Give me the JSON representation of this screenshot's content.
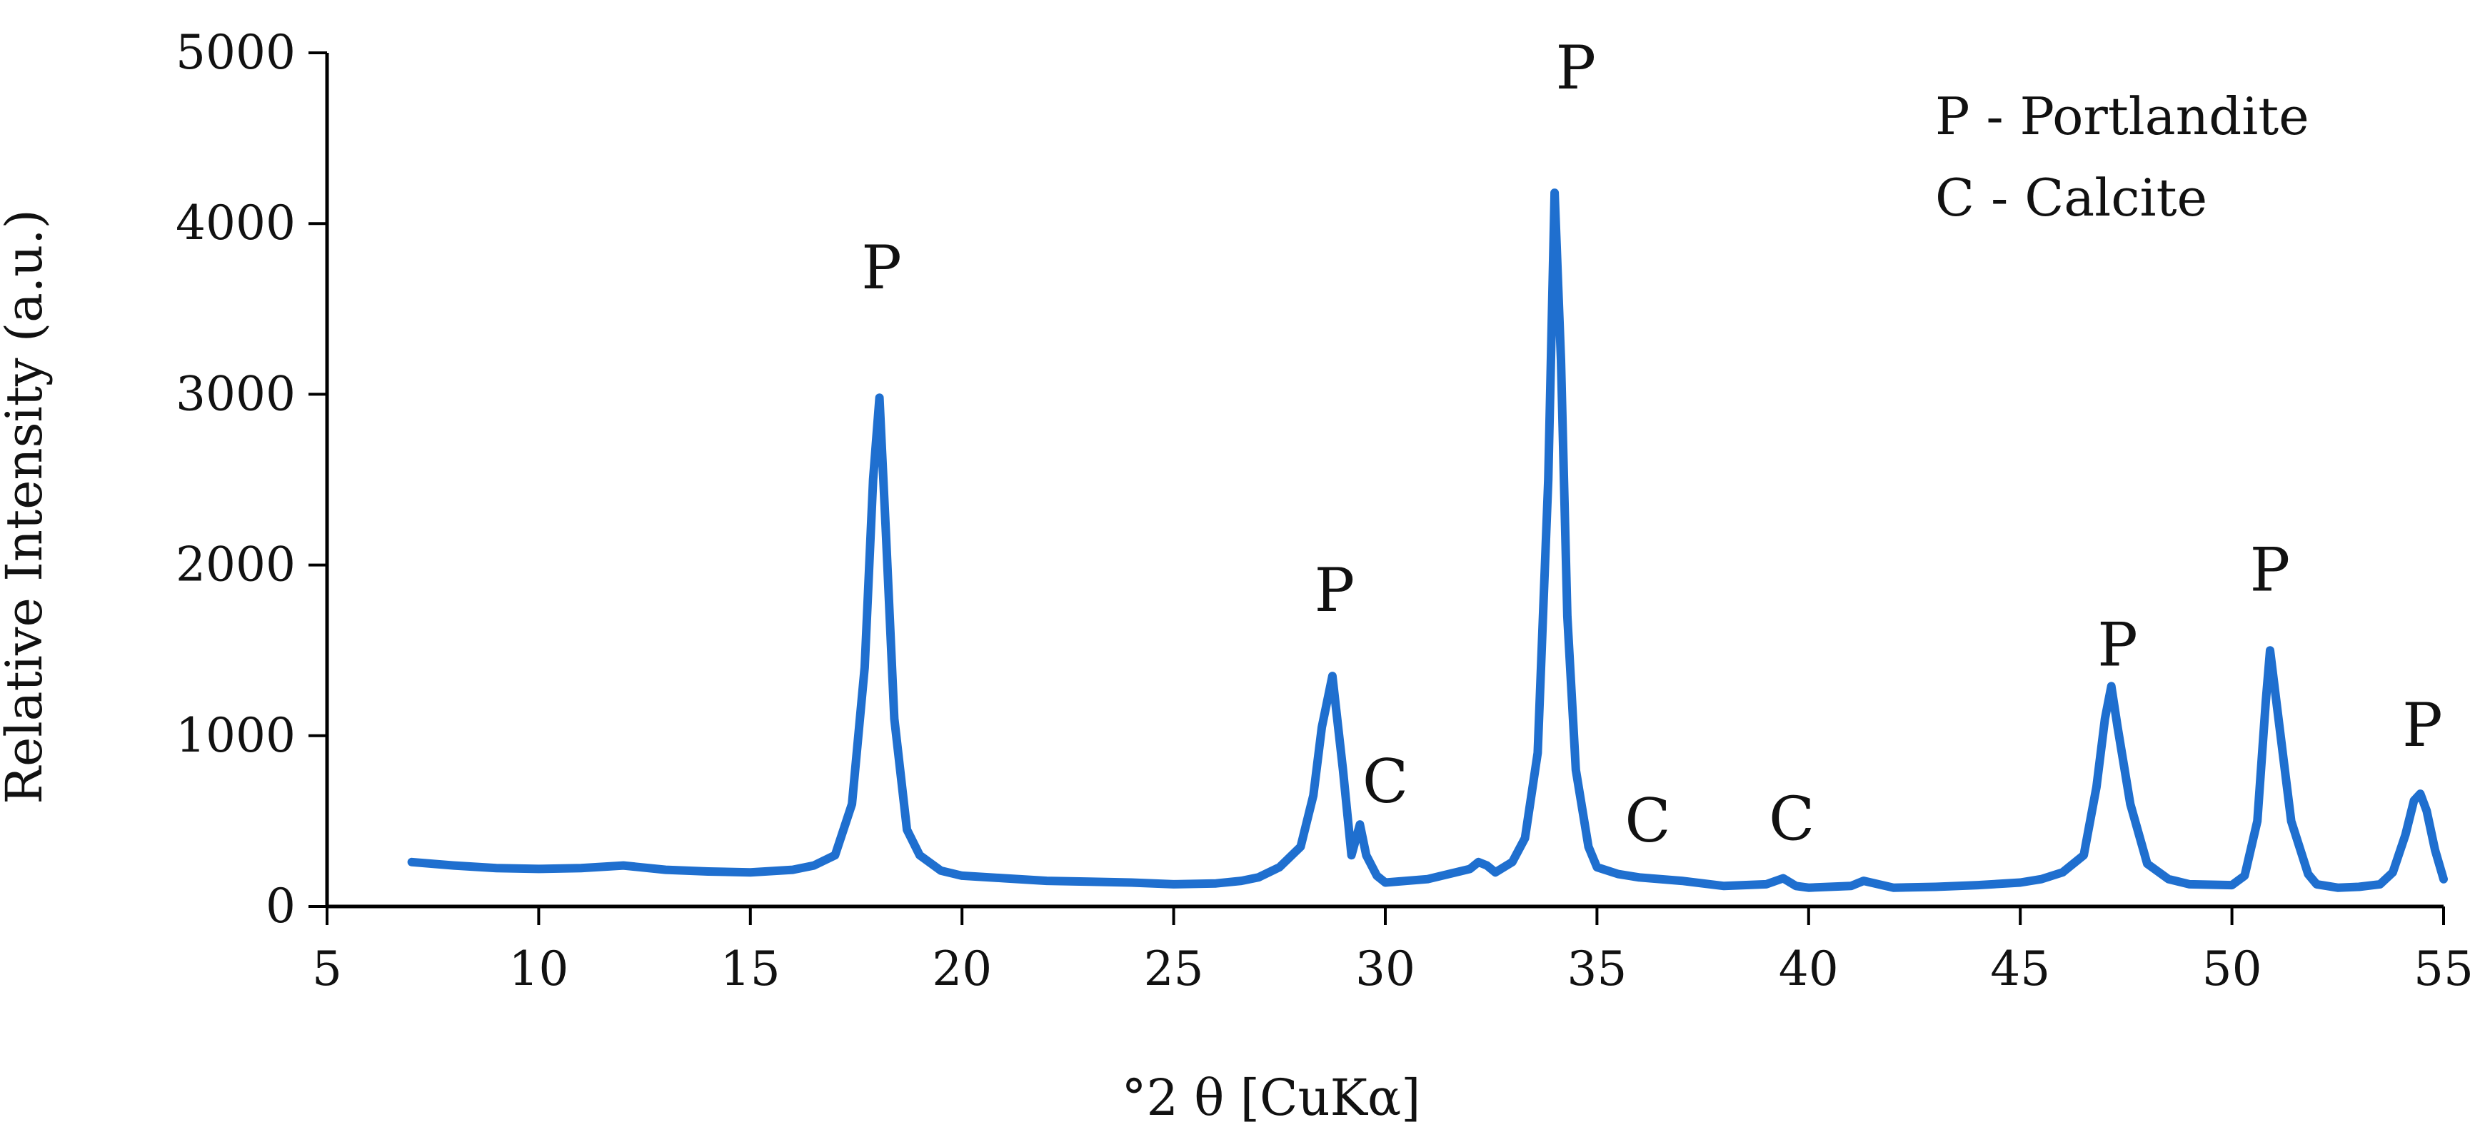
{
  "chart_data": {
    "type": "line",
    "title": "",
    "xlabel": "°2 θ [CuKα]",
    "ylabel": "Relative Intensity (a.u.)",
    "xlim": [
      5,
      55
    ],
    "ylim": [
      0,
      5000
    ],
    "xticks": [
      5,
      10,
      15,
      20,
      25,
      30,
      35,
      40,
      45,
      50,
      55
    ],
    "yticks": [
      0,
      1000,
      2000,
      3000,
      4000,
      5000
    ],
    "grid": false,
    "line_color": "#1f6fcf",
    "series": [
      {
        "name": "",
        "x": [
          7.0,
          8.0,
          9.0,
          10.0,
          11.0,
          12.0,
          13.0,
          14.0,
          15.0,
          16.0,
          16.5,
          17.0,
          17.4,
          17.7,
          17.9,
          18.05,
          18.2,
          18.4,
          18.7,
          19.0,
          19.5,
          20.0,
          21.0,
          22.0,
          23.0,
          24.0,
          25.0,
          26.0,
          26.6,
          27.0,
          27.5,
          28.0,
          28.3,
          28.5,
          28.75,
          29.0,
          29.2,
          29.4,
          29.55,
          29.8,
          30.0,
          31.0,
          32.0,
          32.2,
          32.4,
          32.6,
          33.0,
          33.3,
          33.6,
          33.85,
          34.0,
          34.15,
          34.3,
          34.5,
          34.8,
          35.0,
          35.5,
          36.0,
          37.0,
          38.0,
          39.0,
          39.4,
          39.7,
          40.0,
          41.0,
          41.3,
          42.0,
          43.0,
          44.0,
          45.0,
          45.5,
          46.0,
          46.5,
          46.8,
          47.0,
          47.15,
          47.3,
          47.6,
          48.0,
          48.5,
          49.0,
          50.0,
          50.3,
          50.6,
          50.8,
          50.9,
          51.1,
          51.4,
          51.8,
          52.0,
          52.5,
          53.0,
          53.5,
          53.8,
          54.1,
          54.3,
          54.45,
          54.6,
          54.8,
          55.0
        ],
        "y": [
          260,
          240,
          225,
          220,
          225,
          240,
          215,
          205,
          200,
          215,
          240,
          300,
          600,
          1400,
          2500,
          2980,
          2200,
          1100,
          450,
          300,
          210,
          180,
          165,
          150,
          145,
          140,
          130,
          135,
          150,
          170,
          230,
          350,
          650,
          1050,
          1350,
          800,
          300,
          480,
          300,
          180,
          140,
          160,
          220,
          260,
          240,
          200,
          260,
          400,
          900,
          2500,
          4180,
          3200,
          1700,
          800,
          350,
          230,
          190,
          170,
          150,
          120,
          130,
          165,
          120,
          110,
          120,
          150,
          110,
          115,
          125,
          140,
          160,
          200,
          300,
          700,
          1100,
          1290,
          1050,
          600,
          250,
          160,
          130,
          125,
          180,
          500,
          1200,
          1500,
          1100,
          500,
          190,
          130,
          110,
          115,
          130,
          200,
          420,
          620,
          660,
          560,
          330,
          160
        ]
      }
    ],
    "annotations": [
      {
        "text": "P",
        "x": 18.1,
        "y": 3620
      },
      {
        "text": "P",
        "x": 28.8,
        "y": 1730
      },
      {
        "text": "C",
        "x": 30.0,
        "y": 610
      },
      {
        "text": "P",
        "x": 34.5,
        "y": 4790
      },
      {
        "text": "C",
        "x": 36.2,
        "y": 380
      },
      {
        "text": "C",
        "x": 39.6,
        "y": 390
      },
      {
        "text": "P",
        "x": 47.3,
        "y": 1410
      },
      {
        "text": "P",
        "x": 50.9,
        "y": 1850
      },
      {
        "text": "P",
        "x": 54.5,
        "y": 940
      }
    ],
    "legend": {
      "placement": "top-right",
      "entries": [
        "P - Portlandite",
        "C - Calcite"
      ]
    }
  }
}
